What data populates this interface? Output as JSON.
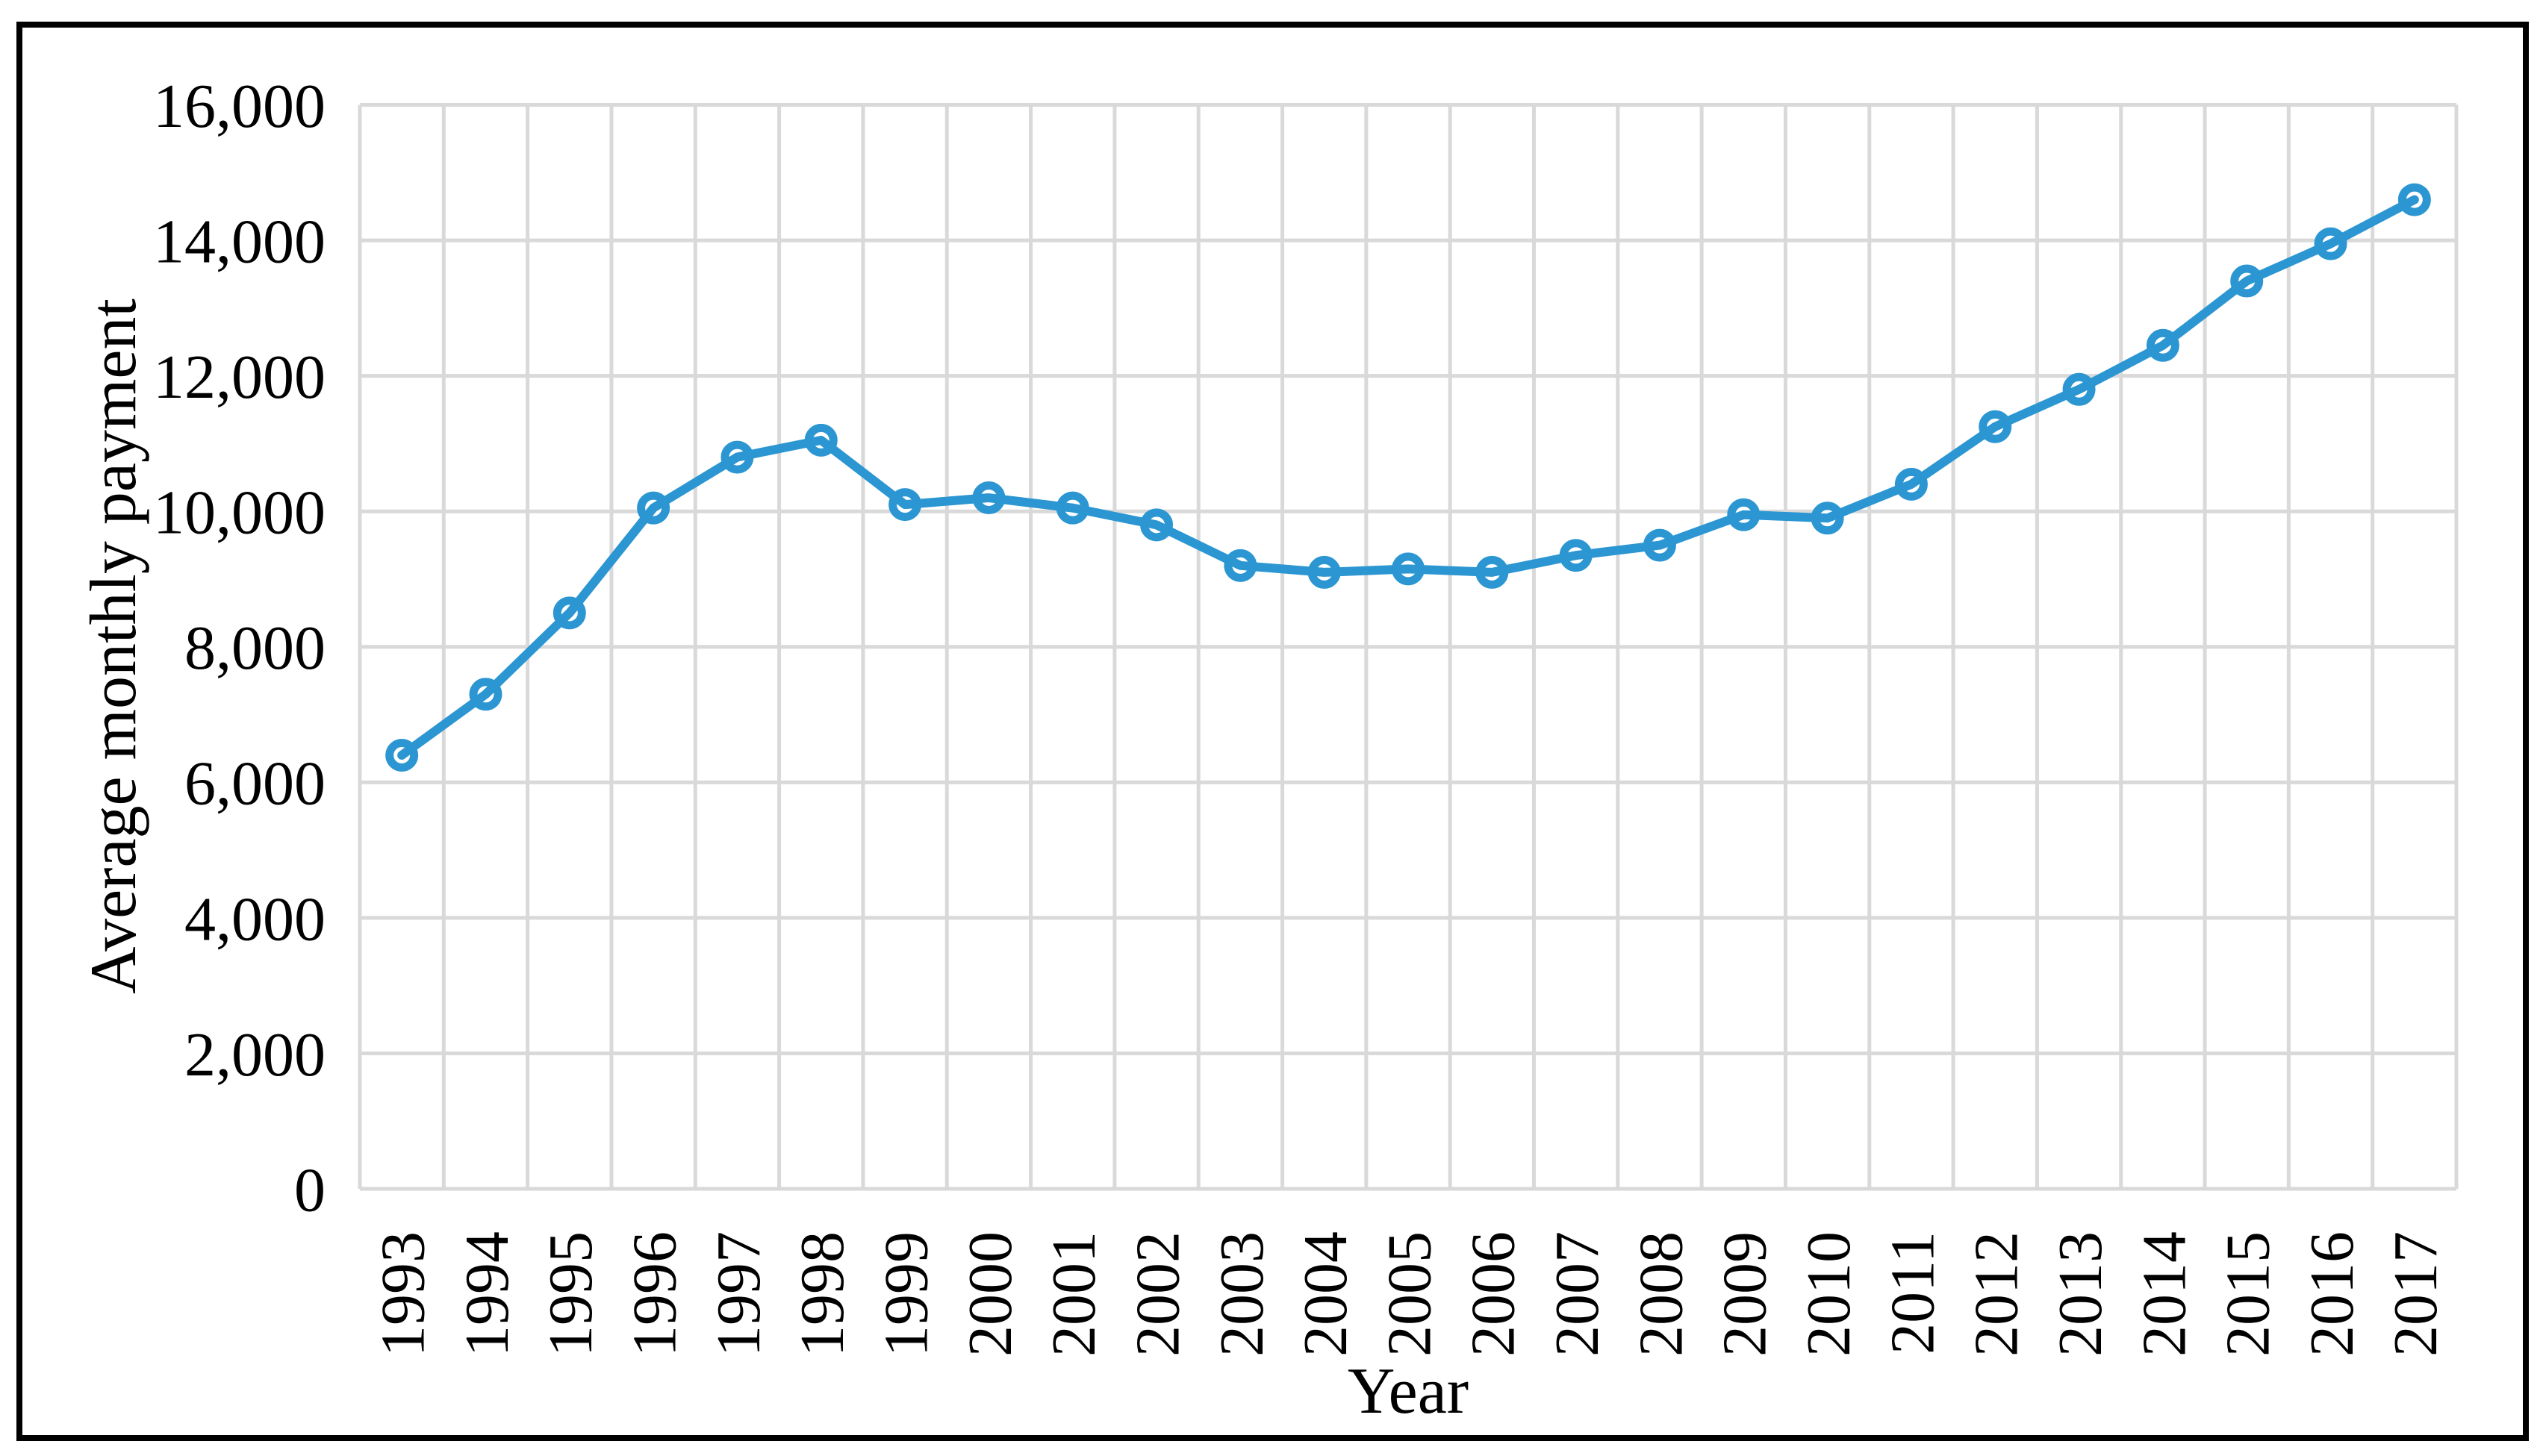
{
  "figure": {
    "background_color": "#FFFFFF",
    "border_color": "#000000"
  },
  "chart_data": {
    "type": "line",
    "title": "",
    "xlabel": "Year",
    "ylabel": "Average monthly payment",
    "categories": [
      1993,
      1994,
      1995,
      1996,
      1997,
      1998,
      1999,
      2000,
      2001,
      2002,
      2003,
      2004,
      2005,
      2006,
      2007,
      2008,
      2009,
      2010,
      2011,
      2012,
      2013,
      2014,
      2015,
      2016,
      2017
    ],
    "series": [
      {
        "name": "Average monthly payment",
        "values": [
          6400,
          7300,
          8500,
          10050,
          10800,
          11050,
          10100,
          10200,
          10050,
          9800,
          9200,
          9100,
          9150,
          9100,
          9350,
          9500,
          9950,
          9900,
          10400,
          11250,
          11800,
          12450,
          13400,
          13950,
          14600
        ]
      }
    ],
    "ylim": [
      0,
      16000
    ],
    "ytick_step": 2000,
    "ytick_labels": [
      "0",
      "2,000",
      "4,000",
      "6,000",
      "8,000",
      "10,000",
      "12,000",
      "14,000",
      "16,000"
    ],
    "grid": true,
    "legend_position": "none",
    "line_color": "#2B96D2",
    "marker_style": "open-circle",
    "marker_fill": "#FFFFFF",
    "gridline_color": "#D9D9D9",
    "text_color": "#000000"
  }
}
